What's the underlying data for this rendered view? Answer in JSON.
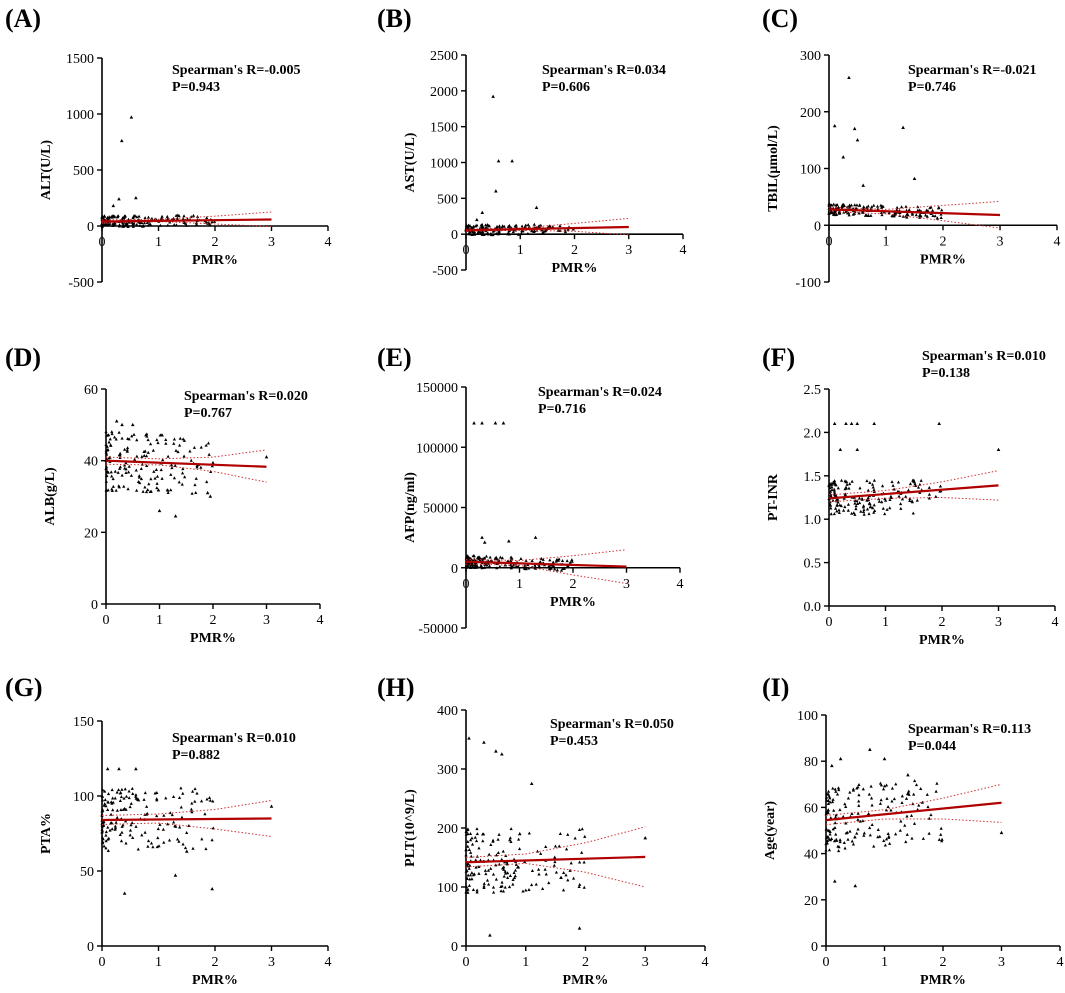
{
  "chart_data": [
    {
      "type": "scatter",
      "panel_label": "(A)",
      "xlabel": "PMR%",
      "ylabel": "ALT(U/L)",
      "xlim": [
        0,
        4
      ],
      "ylim": [
        -500,
        1500
      ],
      "xticks": [
        0,
        1,
        2,
        3,
        4
      ],
      "yticks": [
        -500,
        0,
        500,
        1000,
        1500
      ],
      "annotation": "Spearman's R=-0.005",
      "p_value": "P=0.943",
      "fit": {
        "x": [
          0,
          3
        ],
        "y": [
          40,
          58
        ]
      },
      "ci_upper": {
        "x": [
          0,
          1,
          2,
          3
        ],
        "y": [
          55,
          60,
          88,
          125
        ]
      },
      "ci_lower": {
        "x": [
          0,
          1,
          2,
          3
        ],
        "y": [
          25,
          40,
          18,
          -5
        ]
      },
      "points": {
        "x": [
          0.52,
          0.35,
          0.6,
          0.3,
          0.2
        ],
        "y": [
          970,
          760,
          250,
          240,
          180
        ]
      }
    },
    {
      "type": "scatter",
      "panel_label": "(B)",
      "xlabel": "PMR%",
      "ylabel": "AST(U/L)",
      "xlim": [
        0,
        4
      ],
      "ylim": [
        -500,
        2500
      ],
      "xticks": [
        0,
        1,
        2,
        3,
        4
      ],
      "yticks": [
        -500,
        0,
        500,
        1000,
        1500,
        2000,
        2500
      ],
      "annotation": "Spearman's R=0.034",
      "p_value": "P=0.606",
      "fit": {
        "x": [
          0,
          3
        ],
        "y": [
          55,
          100
        ]
      },
      "ci_upper": {
        "x": [
          0,
          1,
          2,
          3
        ],
        "y": [
          70,
          85,
          150,
          220
        ]
      },
      "ci_lower": {
        "x": [
          0,
          1,
          2,
          3
        ],
        "y": [
          40,
          55,
          40,
          -10
        ]
      },
      "points": {
        "x": [
          0.5,
          0.6,
          0.85,
          0.55,
          1.3,
          0.3,
          0.2
        ],
        "y": [
          1920,
          1020,
          1020,
          600,
          370,
          300,
          200
        ]
      }
    },
    {
      "type": "scatter",
      "panel_label": "(C)",
      "xlabel": "PMR%",
      "ylabel": "TBIL(μmol/L)",
      "xlim": [
        0,
        4
      ],
      "ylim": [
        -100,
        300
      ],
      "xticks": [
        0,
        1,
        2,
        3,
        4
      ],
      "yticks": [
        -100,
        0,
        100,
        200,
        300
      ],
      "annotation": "Spearman's R=-0.021",
      "p_value": "P=0.746",
      "fit": {
        "x": [
          0,
          3
        ],
        "y": [
          28,
          18
        ]
      },
      "ci_upper": {
        "x": [
          0,
          1,
          2,
          3
        ],
        "y": [
          32,
          28,
          35,
          42
        ]
      },
      "ci_lower": {
        "x": [
          0,
          1,
          2,
          3
        ],
        "y": [
          24,
          20,
          8,
          -5
        ]
      },
      "points": {
        "x": [
          0.35,
          0.1,
          0.45,
          1.3,
          0.5,
          0.25,
          1.5,
          0.6
        ],
        "y": [
          260,
          175,
          170,
          172,
          150,
          120,
          82,
          70
        ]
      }
    },
    {
      "type": "scatter",
      "panel_label": "(D)",
      "xlabel": "PMR%",
      "ylabel": "ALB(g/L)",
      "xlim": [
        0,
        4
      ],
      "ylim": [
        0,
        60
      ],
      "xticks": [
        0,
        1,
        2,
        3,
        4
      ],
      "yticks": [
        0,
        20,
        40,
        60
      ],
      "annotation": "Spearman's R=0.020",
      "p_value": "P=0.767",
      "fit": {
        "x": [
          0,
          3
        ],
        "y": [
          40,
          38.3
        ]
      },
      "ci_upper": {
        "x": [
          0,
          1,
          2,
          3
        ],
        "y": [
          41,
          40.5,
          41,
          43
        ]
      },
      "ci_lower": {
        "x": [
          0,
          1,
          2,
          3
        ],
        "y": [
          39,
          38.8,
          37,
          34
        ]
      },
      "points": {
        "x": [
          0.2,
          0.3,
          0.5,
          1.3,
          1.9,
          1.95,
          3.0,
          1.0
        ],
        "y": [
          51,
          50,
          50,
          24.5,
          31,
          30,
          41,
          26
        ]
      }
    },
    {
      "type": "scatter",
      "panel_label": "(E)",
      "xlabel": "PMR%",
      "ylabel": "AFP(ng/ml)",
      "xlim": [
        0,
        4
      ],
      "ylim": [
        -50000,
        150000
      ],
      "xticks": [
        0,
        1,
        2,
        3,
        4
      ],
      "yticks": [
        -50000,
        0,
        50000,
        100000,
        150000
      ],
      "annotation": "Spearman's R=0.024",
      "p_value": "P=0.716",
      "fit": {
        "x": [
          0,
          3
        ],
        "y": [
          5000,
          1000
        ]
      },
      "ci_upper": {
        "x": [
          0,
          1,
          2,
          3
        ],
        "y": [
          7000,
          6000,
          10000,
          15000
        ]
      },
      "ci_lower": {
        "x": [
          0,
          1,
          2,
          3
        ],
        "y": [
          3000,
          2000,
          -6000,
          -13000
        ]
      },
      "points": {
        "x": [
          0.15,
          0.3,
          0.55,
          0.7,
          0.3,
          1.3,
          0.8,
          0.35
        ],
        "y": [
          120000,
          120000,
          120000,
          120000,
          25000,
          25000,
          22000,
          21000
        ]
      }
    },
    {
      "type": "scatter",
      "panel_label": "(F)",
      "xlabel": "PMR%",
      "ylabel": "PT-INR",
      "xlim": [
        0,
        4
      ],
      "ylim": [
        0.0,
        2.5
      ],
      "xticks": [
        0,
        1,
        2,
        3,
        4
      ],
      "yticks": [
        "0.0",
        "0.5",
        "1.0",
        "1.5",
        "2.0",
        "2.5"
      ],
      "annotation": "Spearman's R=0.010",
      "p_value": "P=0.138",
      "fit": {
        "x": [
          0,
          3
        ],
        "y": [
          1.24,
          1.39
        ]
      },
      "ci_upper": {
        "x": [
          0,
          1,
          2,
          3
        ],
        "y": [
          1.28,
          1.33,
          1.43,
          1.56
        ]
      },
      "ci_lower": {
        "x": [
          0,
          1,
          2,
          3
        ],
        "y": [
          1.2,
          1.24,
          1.25,
          1.22
        ]
      },
      "points": {
        "x": [
          0.1,
          0.3,
          0.4,
          0.5,
          0.8,
          1.95,
          3.0,
          0.2,
          0.5
        ],
        "y": [
          2.1,
          2.1,
          2.1,
          2.1,
          2.1,
          2.1,
          1.8,
          1.8,
          1.8
        ]
      }
    },
    {
      "type": "scatter",
      "panel_label": "(G)",
      "xlabel": "PMR%",
      "ylabel": "PTA%",
      "xlim": [
        0,
        4
      ],
      "ylim": [
        0,
        150
      ],
      "xticks": [
        0,
        1,
        2,
        3,
        4
      ],
      "yticks": [
        0,
        50,
        100,
        150
      ],
      "annotation": "Spearman's R=0.010",
      "p_value": "P=0.882",
      "fit": {
        "x": [
          0,
          3
        ],
        "y": [
          84,
          85
        ]
      },
      "ci_upper": {
        "x": [
          0,
          1,
          2,
          3
        ],
        "y": [
          87,
          88,
          91,
          97
        ]
      },
      "ci_lower": {
        "x": [
          0,
          1,
          2,
          3
        ],
        "y": [
          81,
          82,
          78,
          73
        ]
      },
      "points": {
        "x": [
          0.1,
          0.3,
          0.6,
          1.3,
          1.95,
          0.4,
          3.0,
          1.5
        ],
        "y": [
          118,
          118,
          118,
          47,
          38,
          35,
          93,
          63
        ]
      }
    },
    {
      "type": "scatter",
      "panel_label": "(H)",
      "xlabel": "PMR%",
      "ylabel": "PLT(10^9/L)",
      "xlim": [
        0,
        4
      ],
      "ylim": [
        0,
        400
      ],
      "xticks": [
        0,
        1,
        2,
        3,
        4
      ],
      "yticks": [
        0,
        100,
        200,
        300,
        400
      ],
      "annotation": "Spearman's R=0.050",
      "p_value": "P=0.453",
      "fit": {
        "x": [
          0,
          3
        ],
        "y": [
          142,
          151
        ]
      },
      "ci_upper": {
        "x": [
          0,
          1,
          2,
          3
        ],
        "y": [
          150,
          156,
          175,
          202
        ]
      },
      "ci_lower": {
        "x": [
          0,
          1,
          2,
          3
        ],
        "y": [
          134,
          140,
          125,
          100
        ]
      },
      "points": {
        "x": [
          0.05,
          0.3,
          0.5,
          0.6,
          1.1,
          0.9,
          1.9,
          3.0,
          0.4
        ],
        "y": [
          352,
          345,
          330,
          325,
          275,
          190,
          30,
          183,
          18
        ]
      }
    },
    {
      "type": "scatter",
      "panel_label": "(I)",
      "xlabel": "PMR%",
      "ylabel": "Age(year)",
      "xlim": [
        0,
        4
      ],
      "ylim": [
        0,
        100
      ],
      "xticks": [
        0,
        1,
        2,
        3,
        4
      ],
      "yticks": [
        0,
        20,
        40,
        60,
        80,
        100
      ],
      "annotation": "Spearman's R=0.113",
      "p_value": "P=0.044",
      "fit": {
        "x": [
          0,
          3
        ],
        "y": [
          54.5,
          62
        ]
      },
      "ci_upper": {
        "x": [
          0,
          1,
          2,
          3
        ],
        "y": [
          56.5,
          59,
          64,
          70
        ]
      },
      "ci_lower": {
        "x": [
          0,
          1,
          2,
          3
        ],
        "y": [
          52.5,
          55,
          55,
          53.5
        ]
      },
      "points": {
        "x": [
          0.25,
          0.75,
          1.0,
          1.4,
          0.1,
          0.5,
          3.0,
          0.15
        ],
        "y": [
          81,
          85,
          81,
          74,
          78,
          26,
          49,
          28
        ]
      }
    }
  ]
}
